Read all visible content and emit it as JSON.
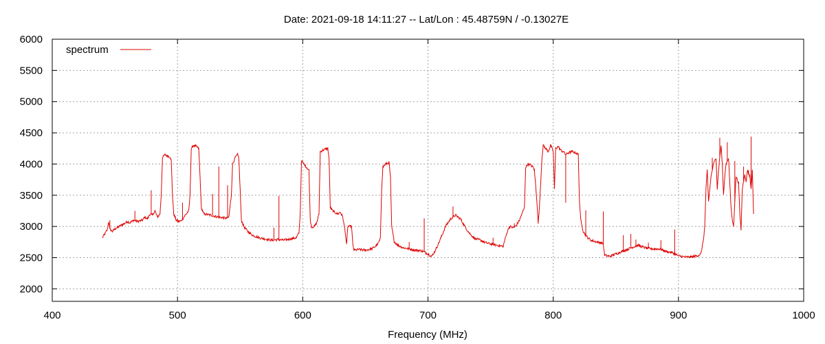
{
  "chart_data": {
    "type": "line",
    "title": "Date: 2021-09-18 14:11:27  --  Lat/Lon : 45.48759N / -0.13027E",
    "xlabel": "Frequency (MHz)",
    "ylabel": "",
    "xlim": [
      400,
      1000
    ],
    "ylim": [
      1800,
      6000
    ],
    "xticks": [
      400,
      500,
      600,
      700,
      800,
      900,
      1000
    ],
    "yticks": [
      2000,
      2500,
      3000,
      3500,
      4000,
      4500,
      5000,
      5500,
      6000
    ],
    "grid": true,
    "legend_position": "top-left",
    "series": [
      {
        "name": "spectrum",
        "color": "#dd0000",
        "points": [
          [
            440,
            2820
          ],
          [
            442,
            2880
          ],
          [
            444,
            2950
          ],
          [
            445,
            3080
          ],
          [
            446,
            2960
          ],
          [
            448,
            2920
          ],
          [
            450,
            2960
          ],
          [
            452,
            2980
          ],
          [
            455,
            3020
          ],
          [
            458,
            3050
          ],
          [
            460,
            3080
          ],
          [
            462,
            3060
          ],
          [
            465,
            3100
          ],
          [
            468,
            3080
          ],
          [
            470,
            3090
          ],
          [
            472,
            3100
          ],
          [
            474,
            3150
          ],
          [
            476,
            3120
          ],
          [
            478,
            3200
          ],
          [
            480,
            3180
          ],
          [
            482,
            3250
          ],
          [
            484,
            3150
          ],
          [
            486,
            3200
          ],
          [
            487,
            3500
          ],
          [
            488,
            4100
          ],
          [
            490,
            4150
          ],
          [
            492,
            4130
          ],
          [
            494,
            4120
          ],
          [
            495,
            4050
          ],
          [
            496,
            3500
          ],
          [
            497,
            3200
          ],
          [
            499,
            3100
          ],
          [
            501,
            3080
          ],
          [
            503,
            3090
          ],
          [
            505,
            3150
          ],
          [
            507,
            3200
          ],
          [
            509,
            3250
          ],
          [
            510,
            3500
          ],
          [
            511,
            4250
          ],
          [
            513,
            4300
          ],
          [
            515,
            4280
          ],
          [
            517,
            4250
          ],
          [
            518,
            3800
          ],
          [
            519,
            3300
          ],
          [
            521,
            3200
          ],
          [
            524,
            3190
          ],
          [
            527,
            3180
          ],
          [
            530,
            3160
          ],
          [
            533,
            3150
          ],
          [
            536,
            3140
          ],
          [
            539,
            3130
          ],
          [
            541,
            3150
          ],
          [
            543,
            3500
          ],
          [
            544,
            4000
          ],
          [
            546,
            4100
          ],
          [
            548,
            4150
          ],
          [
            549,
            4100
          ],
          [
            550,
            3600
          ],
          [
            551,
            3100
          ],
          [
            553,
            3000
          ],
          [
            556,
            2920
          ],
          [
            560,
            2860
          ],
          [
            565,
            2820
          ],
          [
            570,
            2800
          ],
          [
            575,
            2780
          ],
          [
            580,
            2790
          ],
          [
            585,
            2780
          ],
          [
            590,
            2800
          ],
          [
            595,
            2820
          ],
          [
            597,
            2900
          ],
          [
            598,
            3200
          ],
          [
            599,
            4050
          ],
          [
            601,
            4000
          ],
          [
            603,
            3950
          ],
          [
            605,
            3900
          ],
          [
            606,
            3100
          ],
          [
            607,
            3000
          ],
          [
            609,
            2990
          ],
          [
            611,
            3050
          ],
          [
            613,
            3200
          ],
          [
            614,
            4200
          ],
          [
            617,
            4230
          ],
          [
            620,
            4250
          ],
          [
            621,
            4100
          ],
          [
            622,
            3300
          ],
          [
            624,
            3250
          ],
          [
            626,
            3220
          ],
          [
            628,
            3200
          ],
          [
            630,
            3230
          ],
          [
            632,
            3150
          ],
          [
            634,
            2900
          ],
          [
            635,
            2700
          ],
          [
            636,
            3000
          ],
          [
            639,
            3000
          ],
          [
            640,
            2700
          ],
          [
            641,
            2620
          ],
          [
            645,
            2630
          ],
          [
            650,
            2620
          ],
          [
            655,
            2640
          ],
          [
            658,
            2680
          ],
          [
            660,
            2720
          ],
          [
            662,
            2800
          ],
          [
            663,
            3600
          ],
          [
            664,
            3950
          ],
          [
            666,
            4000
          ],
          [
            669,
            4020
          ],
          [
            670,
            3800
          ],
          [
            671,
            3000
          ],
          [
            673,
            2760
          ],
          [
            676,
            2700
          ],
          [
            680,
            2660
          ],
          [
            685,
            2640
          ],
          [
            690,
            2620
          ],
          [
            695,
            2610
          ],
          [
            698,
            2580
          ],
          [
            700,
            2560
          ],
          [
            703,
            2520
          ],
          [
            706,
            2620
          ],
          [
            710,
            2800
          ],
          [
            714,
            3000
          ],
          [
            718,
            3120
          ],
          [
            722,
            3180
          ],
          [
            726,
            3120
          ],
          [
            730,
            2980
          ],
          [
            734,
            2870
          ],
          [
            738,
            2800
          ],
          [
            742,
            2780
          ],
          [
            746,
            2740
          ],
          [
            750,
            2720
          ],
          [
            755,
            2700
          ],
          [
            760,
            2680
          ],
          [
            763,
            2900
          ],
          [
            765,
            3000
          ],
          [
            768,
            2980
          ],
          [
            770,
            3000
          ],
          [
            773,
            3100
          ],
          [
            775,
            3200
          ],
          [
            777,
            3300
          ],
          [
            778,
            3950
          ],
          [
            780,
            4000
          ],
          [
            782,
            3980
          ],
          [
            784,
            3950
          ],
          [
            785,
            3900
          ],
          [
            787,
            3400
          ],
          [
            788,
            3050
          ],
          [
            789,
            3300
          ],
          [
            791,
            4100
          ],
          [
            792,
            4300
          ],
          [
            794,
            4250
          ],
          [
            796,
            4200
          ],
          [
            798,
            4300
          ],
          [
            800,
            4200
          ],
          [
            801,
            3600
          ],
          [
            802,
            4250
          ],
          [
            804,
            4280
          ],
          [
            806,
            4220
          ],
          [
            808,
            4200
          ],
          [
            810,
            4150
          ],
          [
            812,
            4180
          ],
          [
            815,
            4200
          ],
          [
            818,
            4180
          ],
          [
            820,
            4150
          ],
          [
            821,
            3400
          ],
          [
            822,
            3100
          ],
          [
            824,
            2920
          ],
          [
            827,
            2830
          ],
          [
            830,
            2780
          ],
          [
            835,
            2750
          ],
          [
            838,
            2740
          ],
          [
            840,
            2720
          ],
          [
            841,
            2540
          ],
          [
            845,
            2520
          ],
          [
            850,
            2560
          ],
          [
            855,
            2600
          ],
          [
            860,
            2640
          ],
          [
            865,
            2680
          ],
          [
            868,
            2700
          ],
          [
            870,
            2680
          ],
          [
            875,
            2650
          ],
          [
            880,
            2640
          ],
          [
            885,
            2640
          ],
          [
            890,
            2600
          ],
          [
            895,
            2580
          ],
          [
            900,
            2530
          ],
          [
            905,
            2510
          ],
          [
            910,
            2510
          ],
          [
            915,
            2530
          ],
          [
            918,
            2560
          ],
          [
            920,
            2800
          ],
          [
            921,
            3000
          ],
          [
            922,
            3600
          ],
          [
            923,
            3900
          ],
          [
            924,
            3400
          ],
          [
            926,
            3800
          ],
          [
            928,
            4000
          ],
          [
            930,
            4100
          ],
          [
            931,
            3600
          ],
          [
            932,
            3900
          ],
          [
            934,
            4300
          ],
          [
            935,
            4000
          ],
          [
            936,
            3500
          ],
          [
            937,
            3800
          ],
          [
            938,
            4000
          ],
          [
            940,
            4100
          ],
          [
            941,
            3700
          ],
          [
            942,
            3300
          ],
          [
            943,
            3100
          ],
          [
            944,
            3000
          ],
          [
            945,
            3400
          ],
          [
            946,
            3800
          ],
          [
            948,
            3700
          ],
          [
            949,
            3200
          ],
          [
            950,
            2950
          ],
          [
            951,
            3600
          ],
          [
            953,
            3850
          ],
          [
            954,
            3700
          ],
          [
            955,
            3900
          ],
          [
            957,
            3800
          ],
          [
            958,
            3600
          ],
          [
            959,
            3900
          ],
          [
            960,
            3200
          ]
        ],
        "spikes": [
          [
            446,
            3100
          ],
          [
            466,
            3250
          ],
          [
            479,
            3580
          ],
          [
            504,
            3380
          ],
          [
            528,
            3520
          ],
          [
            533,
            3960
          ],
          [
            540,
            3660
          ],
          [
            577,
            2980
          ],
          [
            581,
            3490
          ],
          [
            617,
            4240
          ],
          [
            685,
            2750
          ],
          [
            697,
            3130
          ],
          [
            720,
            3320
          ],
          [
            752,
            2820
          ],
          [
            769,
            3050
          ],
          [
            776,
            3250
          ],
          [
            810,
            3380
          ],
          [
            826,
            3260
          ],
          [
            840,
            3240
          ],
          [
            856,
            2860
          ],
          [
            862,
            2880
          ],
          [
            866,
            2790
          ],
          [
            876,
            2740
          ],
          [
            886,
            2780
          ],
          [
            897,
            2950
          ],
          [
            927,
            4100
          ],
          [
            933,
            4420
          ],
          [
            939,
            4350
          ],
          [
            945,
            4050
          ],
          [
            952,
            3960
          ],
          [
            956,
            3900
          ],
          [
            958,
            4440
          ],
          [
            959,
            3800
          ]
        ]
      }
    ]
  }
}
